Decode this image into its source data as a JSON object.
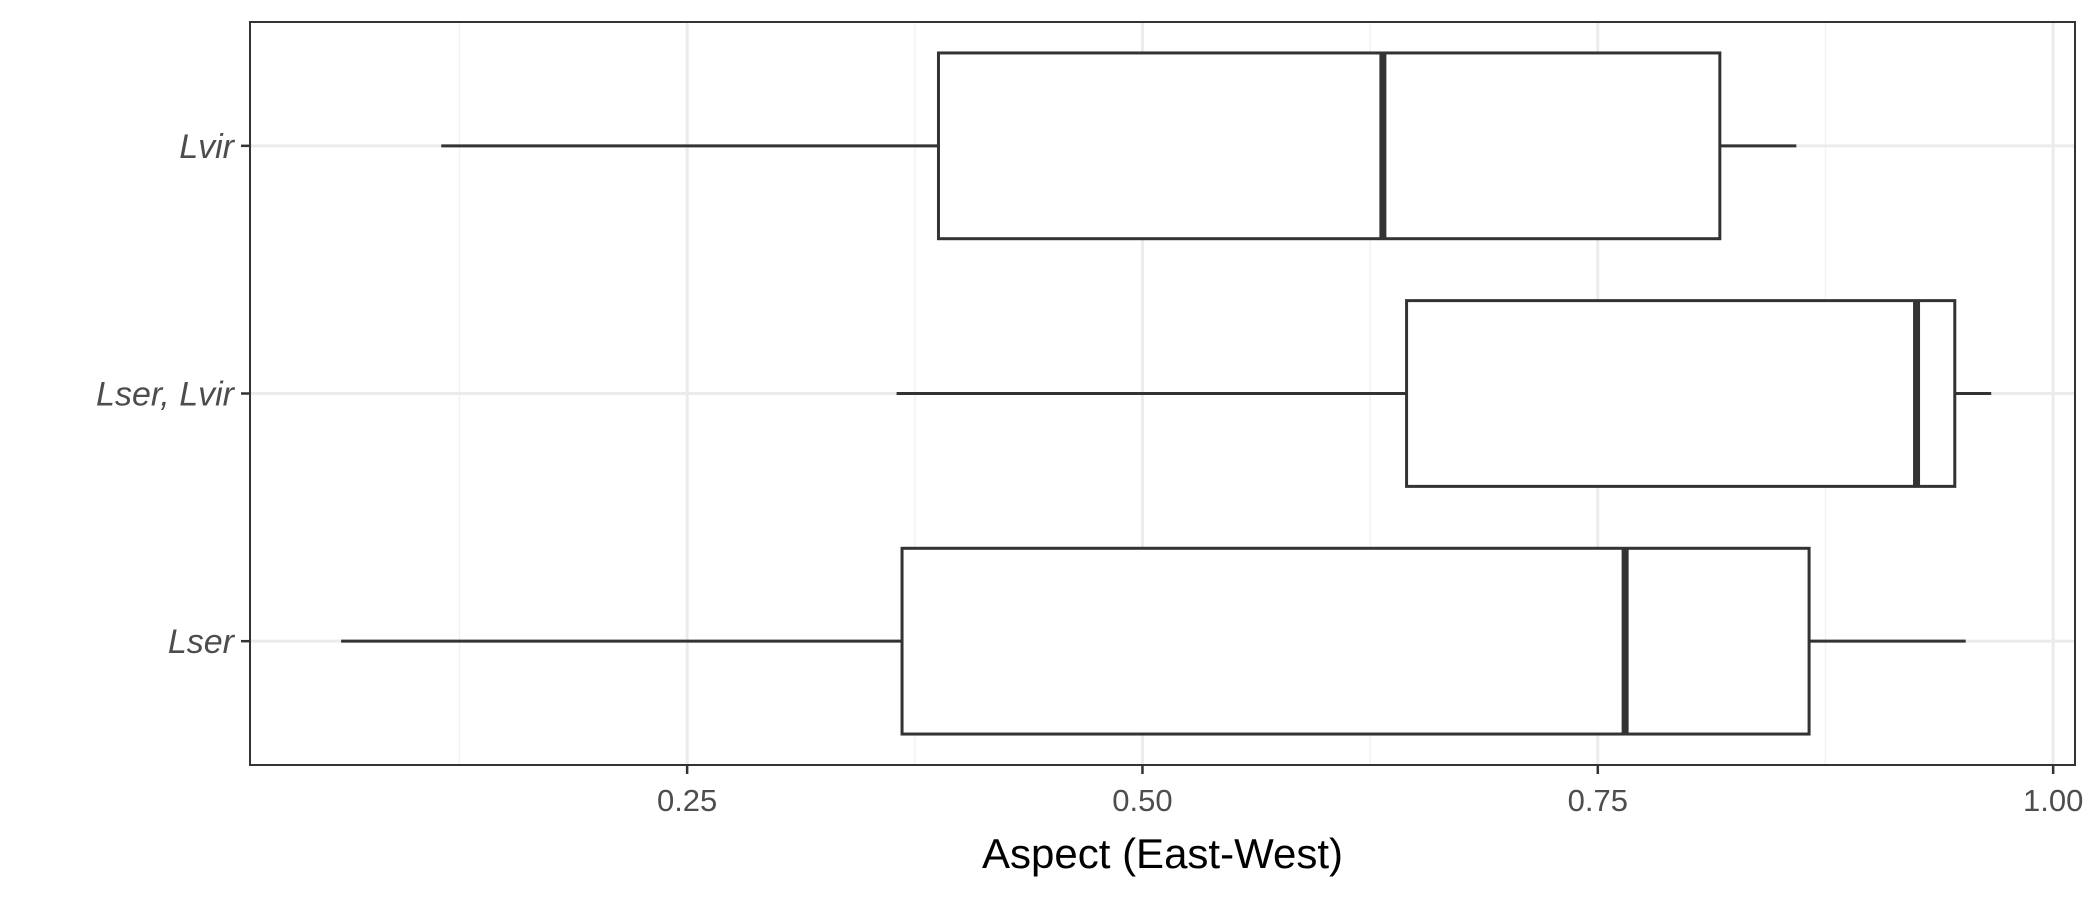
{
  "chart_data": {
    "type": "boxplot",
    "orientation": "horizontal",
    "title": "",
    "xlabel": "Aspect (East-West)",
    "ylabel": "",
    "xlim": [
      0.01,
      1.012
    ],
    "x_ticks": [
      0.25,
      0.5,
      0.75,
      1.0
    ],
    "x_tick_labels": [
      "0.25",
      "0.50",
      "0.75",
      "1.00"
    ],
    "x_minor_ticks": [
      0.125,
      0.375,
      0.625,
      0.875
    ],
    "categories": [
      "Lvir",
      "Lser, Lvir",
      "Lser"
    ],
    "boxes": [
      {
        "category": "Lvir",
        "min": 0.115,
        "q1": 0.388,
        "median": 0.632,
        "q3": 0.817,
        "max": 0.859
      },
      {
        "category": "Lser, Lvir",
        "min": 0.365,
        "q1": 0.645,
        "median": 0.925,
        "q3": 0.946,
        "max": 0.966
      },
      {
        "category": "Lser",
        "min": 0.06,
        "q1": 0.368,
        "median": 0.765,
        "q3": 0.866,
        "max": 0.952
      }
    ],
    "grid": true,
    "legend": "none",
    "colors": {
      "box_fill": "#ffffff",
      "box_stroke": "#333333"
    }
  }
}
